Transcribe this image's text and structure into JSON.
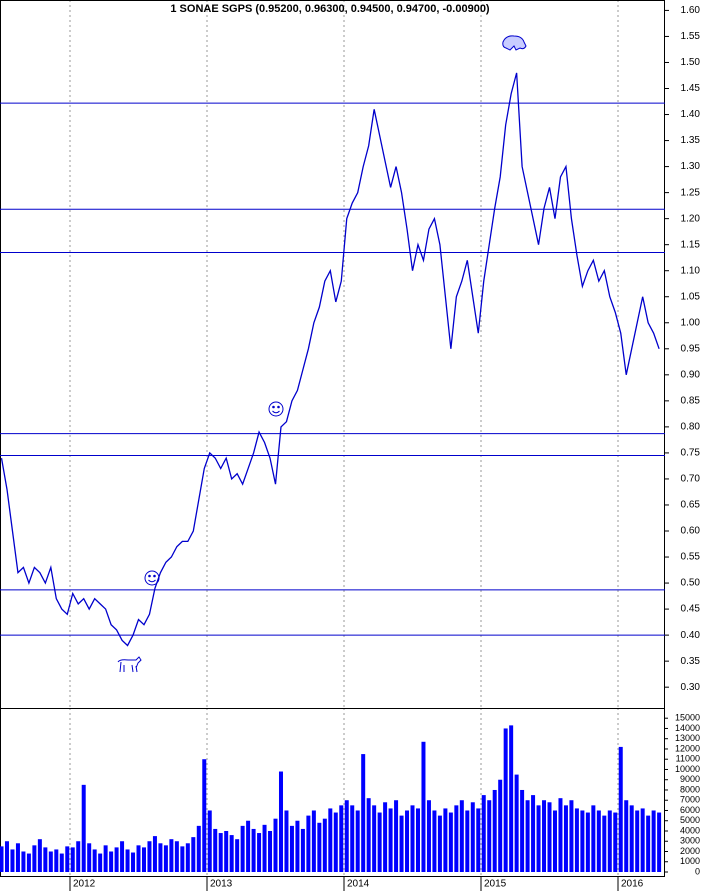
{
  "chart_data": {
    "type": "line",
    "title": "1 SONAE SGPS (0.95200, 0.96300, 0.94500, 0.94700, -0.00900)",
    "x": [
      2011.5,
      2011.54,
      2011.58,
      2011.62,
      2011.66,
      2011.7,
      2011.74,
      2011.78,
      2011.82,
      2011.86,
      2011.9,
      2011.94,
      2011.98,
      2012.02,
      2012.06,
      2012.1,
      2012.14,
      2012.18,
      2012.22,
      2012.26,
      2012.3,
      2012.34,
      2012.38,
      2012.42,
      2012.46,
      2012.5,
      2012.54,
      2012.58,
      2012.62,
      2012.66,
      2012.7,
      2012.74,
      2012.78,
      2012.82,
      2012.86,
      2012.9,
      2012.94,
      2012.98,
      2013.02,
      2013.06,
      2013.1,
      2013.14,
      2013.18,
      2013.22,
      2013.26,
      2013.3,
      2013.34,
      2013.38,
      2013.42,
      2013.46,
      2013.5,
      2013.54,
      2013.58,
      2013.62,
      2013.66,
      2013.7,
      2013.74,
      2013.78,
      2013.82,
      2013.86,
      2013.9,
      2013.94,
      2013.98,
      2014.02,
      2014.06,
      2014.1,
      2014.14,
      2014.18,
      2014.22,
      2014.26,
      2014.3,
      2014.34,
      2014.38,
      2014.42,
      2014.46,
      2014.5,
      2014.54,
      2014.58,
      2014.62,
      2014.66,
      2014.7,
      2014.74,
      2014.78,
      2014.82,
      2014.86,
      2014.9,
      2014.94,
      2014.98,
      2015.02,
      2015.06,
      2015.1,
      2015.14,
      2015.18,
      2015.22,
      2015.26,
      2015.3,
      2015.34,
      2015.38,
      2015.42,
      2015.46,
      2015.5,
      2015.54,
      2015.58,
      2015.62,
      2015.66,
      2015.7,
      2015.74,
      2015.78,
      2015.82,
      2015.86,
      2015.9,
      2015.94,
      2015.98,
      2016.02,
      2016.06,
      2016.1,
      2016.14,
      2016.18,
      2016.22,
      2016.26,
      2016.3
    ],
    "xlim": [
      2011.489,
      2016.343
    ],
    "xticks": [
      2012,
      2013,
      2014,
      2015,
      2016
    ],
    "ylim": [
      0.26,
      1.62
    ],
    "yticks": [
      {
        "value": 0.3,
        "label": "0.30"
      },
      {
        "value": 0.35,
        "label": "0.35"
      },
      {
        "value": 0.4,
        "label": "0.40"
      },
      {
        "value": 0.45,
        "label": "0.45"
      },
      {
        "value": 0.5,
        "label": "0.50"
      },
      {
        "value": 0.55,
        "label": "0.55"
      },
      {
        "value": 0.6,
        "label": "0.60"
      },
      {
        "value": 0.65,
        "label": "0.65"
      },
      {
        "value": 0.7,
        "label": "0.70"
      },
      {
        "value": 0.75,
        "label": "0.75"
      },
      {
        "value": 0.8,
        "label": "0.80"
      },
      {
        "value": 0.85,
        "label": "0.85"
      },
      {
        "value": 0.9,
        "label": "0.90"
      },
      {
        "value": 0.95,
        "label": "0.95"
      },
      {
        "value": 1.0,
        "label": "1.00"
      },
      {
        "value": 1.05,
        "label": "1.05"
      },
      {
        "value": 1.1,
        "label": "1.10"
      },
      {
        "value": 1.15,
        "label": "1.15"
      },
      {
        "value": 1.2,
        "label": "1.20"
      },
      {
        "value": 1.25,
        "label": "1.25"
      },
      {
        "value": 1.3,
        "label": "1.30"
      },
      {
        "value": 1.35,
        "label": "1.35"
      },
      {
        "value": 1.4,
        "label": "1.40"
      },
      {
        "value": 1.45,
        "label": "1.45"
      },
      {
        "value": 1.5,
        "label": "1.50"
      },
      {
        "value": 1.55,
        "label": "1.55"
      },
      {
        "value": 1.6,
        "label": "1.60"
      }
    ],
    "y2lim": [
      0,
      15800
    ],
    "y2ticks": [
      0,
      1000,
      2000,
      3000,
      4000,
      5000,
      6000,
      7000,
      8000,
      9000,
      10000,
      11000,
      12000,
      13000,
      14000,
      15000
    ],
    "hlines": [
      1.422,
      1.218,
      1.135,
      0.787,
      0.745,
      0.487,
      0.4
    ],
    "series": [
      {
        "color": "#0000cc",
        "values": [
          0.74,
          0.68,
          0.6,
          0.52,
          0.53,
          0.5,
          0.53,
          0.52,
          0.5,
          0.53,
          0.47,
          0.45,
          0.44,
          0.48,
          0.46,
          0.47,
          0.45,
          0.47,
          0.46,
          0.45,
          0.42,
          0.41,
          0.39,
          0.38,
          0.4,
          0.43,
          0.42,
          0.44,
          0.49,
          0.52,
          0.54,
          0.55,
          0.57,
          0.58,
          0.58,
          0.6,
          0.66,
          0.72,
          0.75,
          0.74,
          0.72,
          0.74,
          0.7,
          0.71,
          0.69,
          0.72,
          0.75,
          0.79,
          0.77,
          0.74,
          0.69,
          0.8,
          0.81,
          0.85,
          0.87,
          0.91,
          0.95,
          1.0,
          1.03,
          1.08,
          1.1,
          1.04,
          1.08,
          1.2,
          1.23,
          1.25,
          1.3,
          1.34,
          1.41,
          1.36,
          1.31,
          1.26,
          1.3,
          1.25,
          1.18,
          1.1,
          1.15,
          1.12,
          1.18,
          1.2,
          1.15,
          1.05,
          0.95,
          1.05,
          1.08,
          1.12,
          1.05,
          0.98,
          1.08,
          1.15,
          1.22,
          1.28,
          1.38,
          1.44,
          1.48,
          1.3,
          1.25,
          1.2,
          1.15,
          1.22,
          1.26,
          1.2,
          1.28,
          1.3,
          1.2,
          1.13,
          1.07,
          1.1,
          1.12,
          1.08,
          1.1,
          1.05,
          1.02,
          0.98,
          0.9,
          0.95,
          1.0,
          1.05,
          1.0,
          0.98,
          0.95
        ]
      },
      {
        "color": "#0000ff",
        "type": "bar",
        "axis": "y2",
        "values": [
          2500,
          3000,
          2200,
          2800,
          2000,
          1800,
          2600,
          3200,
          2400,
          2000,
          2200,
          1800,
          2500,
          2400,
          3000,
          8500,
          2800,
          2200,
          1800,
          2600,
          2000,
          2400,
          3000,
          2200,
          1900,
          2600,
          2400,
          3000,
          3500,
          2800,
          2600,
          3200,
          3000,
          2500,
          2800,
          3400,
          4500,
          11000,
          6000,
          4200,
          3800,
          4000,
          3600,
          3200,
          4500,
          5000,
          4200,
          3800,
          4600,
          4000,
          5200,
          9800,
          6000,
          4500,
          5000,
          4200,
          5500,
          6000,
          4800,
          5200,
          6200,
          5800,
          6500,
          7000,
          6500,
          6000,
          11500,
          7200,
          6500,
          5800,
          6800,
          6200,
          7000,
          5500,
          6000,
          6500,
          6200,
          12700,
          7000,
          6000,
          5500,
          6200,
          5800,
          6500,
          7000,
          6000,
          6800,
          6200,
          7500,
          7000,
          8000,
          9000,
          14000,
          14300,
          9500,
          8000,
          7000,
          7500,
          6500,
          7000,
          6800,
          6000,
          7200,
          6500,
          7000,
          6200,
          6000,
          5800,
          6500,
          6000,
          5500,
          6000,
          5800,
          12200,
          7000,
          6500,
          6000,
          6200,
          5500,
          6000,
          5800
        ]
      }
    ]
  }
}
